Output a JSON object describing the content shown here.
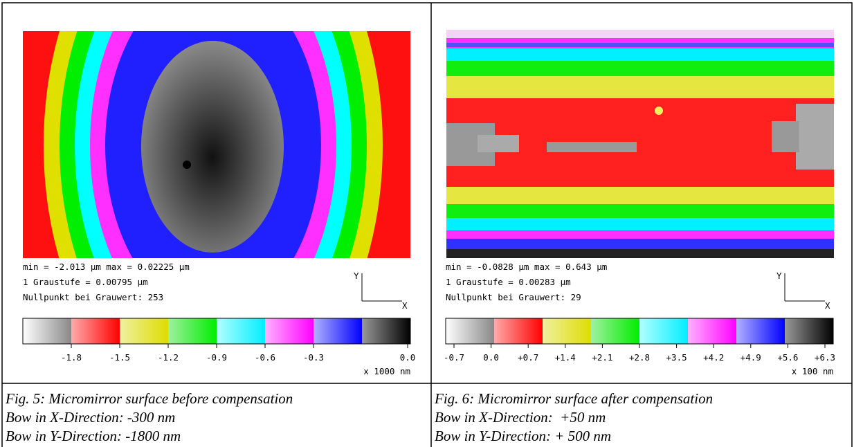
{
  "panels": [
    {
      "info": [
        "min = -2.013 µm   max = 0.02225 µm",
        "1 Graustufe = 0.00795 µm",
        "Nullpunkt bei Grauwert: 253"
      ],
      "axis_y": "Y",
      "axis_x": "X",
      "colorbar_ticks": [
        "-1.8",
        "-1.5",
        "-1.2",
        "-0.9",
        "-0.6",
        "-0.3",
        "0.0"
      ],
      "unit": "x 1000 nm",
      "caption": [
        "Fig. 5: Micromirror surface before compensation",
        "Bow in X-Direction: -300 nm",
        "Bow in Y-Direction: -1800 nm"
      ]
    },
    {
      "info": [
        "min = -0.0828 µm   max = 0.643 µm",
        "1 Graustufe = 0.00283 µm",
        "Nullpunkt bei Grauwert: 29"
      ],
      "axis_y": "Y",
      "axis_x": "X",
      "colorbar_ticks": [
        "-0.7",
        "0.0",
        "+0.7",
        "+1.4",
        "+2.1",
        "+2.8",
        "+3.5",
        "+4.2",
        "+4.9",
        "+5.6",
        "+6.3"
      ],
      "unit": "x 100 nm",
      "caption": [
        "Fig. 6: Micromirror surface after compensation",
        "Bow in X-Direction:  +50 nm",
        "Bow in Y-Direction: + 500 nm"
      ]
    }
  ]
}
